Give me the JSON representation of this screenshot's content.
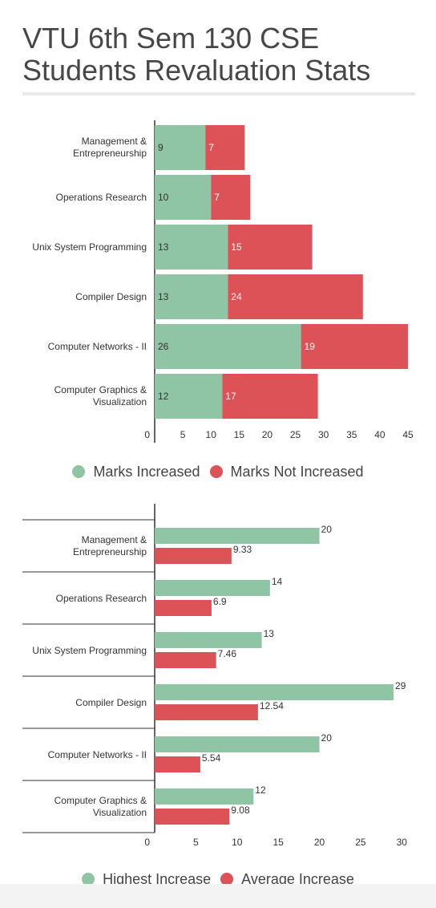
{
  "title": "VTU 6th Sem 130 CSE Students Revaluation Stats",
  "colors": {
    "green": "#8fc4a4",
    "red": "#dd5257"
  },
  "legend1": {
    "a": "Marks Increased",
    "b": "Marks Not Increased"
  },
  "legend2": {
    "a": "Highest Increase",
    "b": "Average Increase"
  },
  "chart_data": [
    {
      "type": "bar",
      "orientation": "horizontal",
      "stacked": true,
      "categories": [
        "Management & Entrepreneurship",
        "Operations Research",
        "Unix System Programming",
        "Compiler Design",
        "Computer Networks - II",
        "Computer Graphics & Visualization"
      ],
      "series": [
        {
          "name": "Marks Increased",
          "values": [
            9,
            10,
            13,
            13,
            26,
            12
          ],
          "color": "#8fc4a4"
        },
        {
          "name": "Marks Not Increased",
          "values": [
            7,
            7,
            15,
            24,
            19,
            17
          ],
          "color": "#dd5257"
        }
      ],
      "xticks": [
        0,
        5,
        10,
        15,
        20,
        25,
        30,
        35,
        40,
        45
      ],
      "xlim": [
        0,
        45
      ],
      "grid": false,
      "legend": "bottom"
    },
    {
      "type": "bar",
      "orientation": "horizontal",
      "stacked": false,
      "categories": [
        "Management & Entrepreneurship",
        "Operations Research",
        "Unix System Programming",
        "Compiler Design",
        "Computer Networks - II",
        "Computer Graphics & Visualization"
      ],
      "series": [
        {
          "name": "Highest Increase",
          "values": [
            20,
            14,
            13,
            29,
            20,
            12
          ],
          "labels": [
            "20",
            "14",
            "13",
            "29",
            "20",
            "12"
          ],
          "color": "#8fc4a4"
        },
        {
          "name": "Average Increase",
          "values": [
            9.33,
            6.9,
            7.46,
            12.54,
            5.54,
            9.08
          ],
          "labels": [
            "9.33",
            "6.9",
            "7.46",
            "12.54",
            "5.54",
            "9.08"
          ],
          "color": "#dd5257"
        }
      ],
      "xticks": [
        0,
        5,
        10,
        15,
        20,
        25,
        30
      ],
      "xlim": [
        0,
        30
      ],
      "grid": false,
      "legend": "bottom"
    }
  ]
}
